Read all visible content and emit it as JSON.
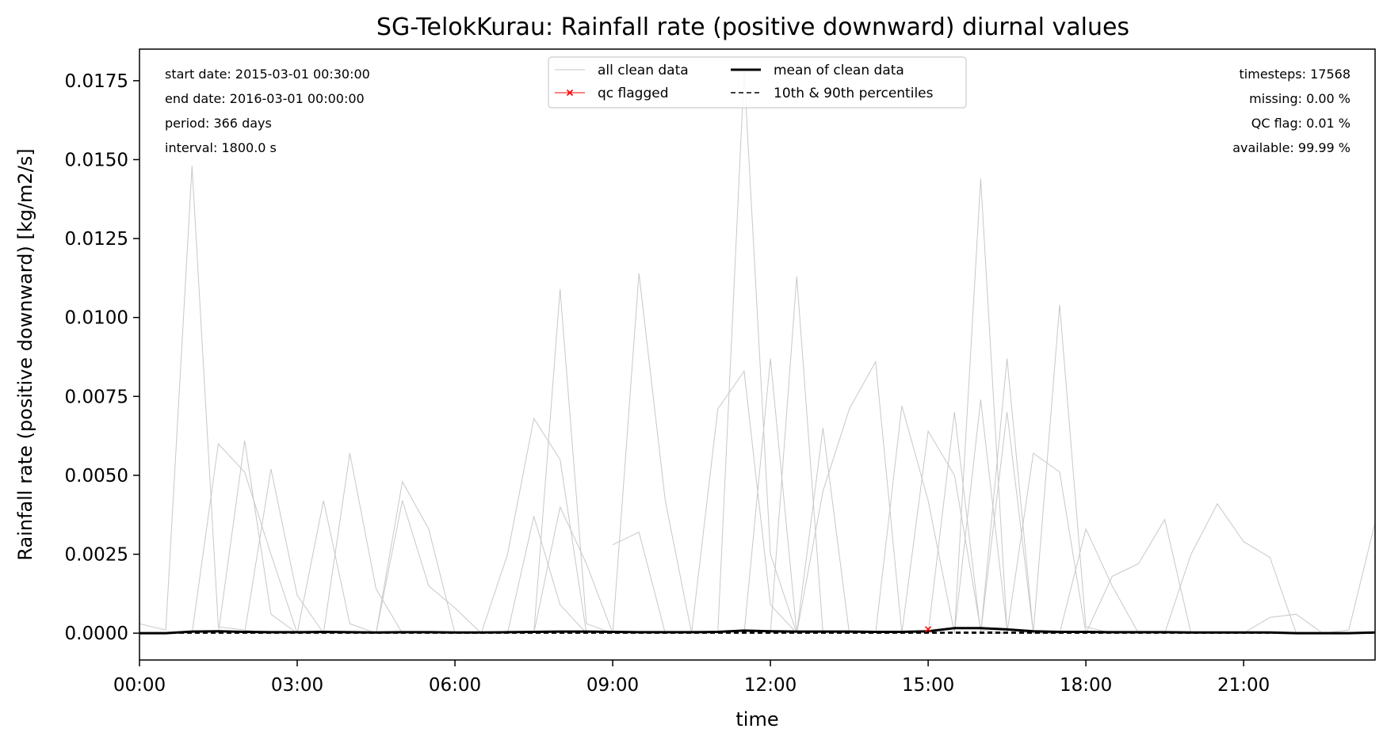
{
  "chart_data": {
    "type": "line",
    "title": "SG-TelokKurau: Rainfall rate (positive downward) diurnal values",
    "xlabel": "time",
    "ylabel": "Rainfall rate (positive downward) [kg/m2/s]",
    "xlim_hours": [
      0,
      23.5
    ],
    "ylim": [
      -0.00085,
      0.0185
    ],
    "x_ticks": [
      {
        "hour": 0,
        "label": "00:00"
      },
      {
        "hour": 3,
        "label": "03:00"
      },
      {
        "hour": 6,
        "label": "06:00"
      },
      {
        "hour": 9,
        "label": "09:00"
      },
      {
        "hour": 12,
        "label": "12:00"
      },
      {
        "hour": 15,
        "label": "15:00"
      },
      {
        "hour": 18,
        "label": "18:00"
      },
      {
        "hour": 21,
        "label": "21:00"
      }
    ],
    "y_ticks": [
      {
        "value": 0.0,
        "label": "0.0000"
      },
      {
        "value": 0.0025,
        "label": "0.0025"
      },
      {
        "value": 0.005,
        "label": "0.0050"
      },
      {
        "value": 0.0075,
        "label": "0.0075"
      },
      {
        "value": 0.01,
        "label": "0.0100"
      },
      {
        "value": 0.0125,
        "label": "0.0125"
      },
      {
        "value": 0.015,
        "label": "0.0150"
      },
      {
        "value": 0.0175,
        "label": "0.0175"
      }
    ],
    "grid": false,
    "legend_position": "top-center",
    "colors": {
      "clean": "#c8c8c8",
      "mean": "#000000",
      "percentiles": "#000000",
      "qc": "#ff0000"
    },
    "legend": [
      {
        "label": "all clean data",
        "style": "thin-gray"
      },
      {
        "label": "mean of clean data",
        "style": "thick-black"
      },
      {
        "label": "qc flagged",
        "style": "red-x"
      },
      {
        "label": "10th & 90th percentiles",
        "style": "dashed-black"
      }
    ],
    "stats_left": [
      "start date: 2015-03-01 00:30:00",
      "end date: 2016-03-01 00:00:00",
      "period: 366 days",
      "interval: 1800.0 s"
    ],
    "stats_right": [
      "timesteps: 17568",
      "missing: 0.00 %",
      "QC flag: 0.01 %",
      "available: 99.99 %"
    ],
    "mean_series": {
      "x": [
        0,
        0.5,
        1,
        1.5,
        2,
        2.5,
        3,
        3.5,
        4,
        4.5,
        5,
        5.5,
        6,
        6.5,
        7,
        7.5,
        8,
        8.5,
        9,
        9.5,
        10,
        10.5,
        11,
        11.5,
        12,
        12.5,
        13,
        13.5,
        14,
        14.5,
        15,
        15.5,
        16,
        16.5,
        17,
        17.5,
        18,
        18.5,
        19,
        19.5,
        20,
        20.5,
        21,
        21.5,
        22,
        22.5,
        23,
        23.5
      ],
      "y": [
        0.0,
        0.0,
        5e-05,
        6e-05,
        4e-05,
        3e-05,
        3e-05,
        4e-05,
        3e-05,
        2e-05,
        3e-05,
        3e-05,
        2e-05,
        2e-05,
        3e-05,
        4e-05,
        5e-05,
        5e-05,
        4e-05,
        3e-05,
        3e-05,
        3e-05,
        4e-05,
        8e-05,
        6e-05,
        5e-05,
        5e-05,
        5e-05,
        4e-05,
        4e-05,
        6e-05,
        0.00016,
        0.00016,
        0.00012,
        6e-05,
        4e-05,
        4e-05,
        3e-05,
        3e-05,
        3e-05,
        2e-05,
        2e-05,
        2e-05,
        2e-05,
        0.0,
        0.0,
        0.0,
        2e-05
      ]
    },
    "percentile_series": {
      "name": "10th & 90th percentiles",
      "p10": {
        "x": [
          0,
          23.5
        ],
        "y": [
          0.0,
          0.0
        ]
      },
      "p90": {
        "x": [
          0,
          0.5,
          1,
          1.5,
          2,
          2.5,
          3,
          3.5,
          4,
          4.5,
          5,
          5.5,
          6,
          6.5,
          7,
          7.5,
          8,
          8.5,
          9,
          9.5,
          10,
          10.5,
          11,
          11.5,
          12,
          12.5,
          13,
          13.5,
          14,
          14.5,
          15,
          15.5,
          16,
          16.5,
          17,
          17.5,
          18,
          18.5,
          19,
          19.5,
          20,
          20.5,
          21,
          21.5,
          22,
          22.5,
          23,
          23.5
        ],
        "y": [
          0.0,
          0.0,
          2e-05,
          3e-05,
          2e-05,
          2e-05,
          1e-05,
          2e-05,
          2e-05,
          1e-05,
          1e-05,
          1e-05,
          1e-05,
          1e-05,
          1e-05,
          2e-05,
          2e-05,
          2e-05,
          2e-05,
          1e-05,
          1e-05,
          1e-05,
          2e-05,
          2e-05,
          2e-05,
          2e-05,
          2e-05,
          2e-05,
          2e-05,
          2e-05,
          2e-05,
          3e-05,
          3e-05,
          3e-05,
          2e-05,
          2e-05,
          2e-05,
          1e-05,
          1e-05,
          1e-05,
          1e-05,
          1e-05,
          1e-05,
          1e-05,
          0.0,
          0.0,
          0.0,
          1e-05
        ]
      }
    },
    "qc_points": [
      {
        "x": 15.0,
        "y": 0.00012
      }
    ],
    "clean_days": [
      {
        "x": [
          0,
          0.5,
          1.0,
          1.5,
          2.0,
          2.5
        ],
        "y": [
          0.0003,
          0.0001,
          0.0148,
          0.0002,
          0.0001,
          0.0
        ]
      },
      {
        "x": [
          1.0,
          1.5,
          2.0,
          2.5,
          3.0
        ],
        "y": [
          0.0,
          0.006,
          0.0051,
          0.0025,
          0.0
        ]
      },
      {
        "x": [
          1.5,
          2.0,
          2.5,
          3.0
        ],
        "y": [
          0.0,
          0.0061,
          0.0006,
          0.0
        ]
      },
      {
        "x": [
          2.0,
          2.5,
          3.0,
          3.5
        ],
        "y": [
          0.0,
          0.0052,
          0.0012,
          0.0
        ]
      },
      {
        "x": [
          3.0,
          3.5,
          4.0,
          4.5
        ],
        "y": [
          0.0,
          0.0042,
          0.0003,
          0.0
        ]
      },
      {
        "x": [
          3.5,
          4.0,
          4.5,
          5.0
        ],
        "y": [
          0.0,
          0.0057,
          0.0014,
          0.0
        ]
      },
      {
        "x": [
          4.5,
          5.0,
          5.5,
          6.0
        ],
        "y": [
          0.0,
          0.0048,
          0.0033,
          0.0
        ]
      },
      {
        "x": [
          4.5,
          5.0,
          5.5,
          6.0,
          6.5
        ],
        "y": [
          0.0,
          0.0042,
          0.0015,
          0.0008,
          0.0
        ]
      },
      {
        "x": [
          6.5,
          7.0,
          7.5,
          8.0,
          8.5
        ],
        "y": [
          0.0,
          0.0025,
          0.0068,
          0.0055,
          0.0
        ]
      },
      {
        "x": [
          7.5,
          8.0,
          8.5,
          9.0
        ],
        "y": [
          0.0,
          0.0109,
          0.0003,
          0.0
        ]
      },
      {
        "x": [
          7.0,
          7.5,
          8.0,
          8.5
        ],
        "y": [
          0.0,
          0.0037,
          0.0009,
          0.0
        ]
      },
      {
        "x": [
          7.5,
          8.0,
          8.5,
          9.0
        ],
        "y": [
          0.0,
          0.004,
          0.0022,
          0.0
        ]
      },
      {
        "x": [
          9.0,
          9.5,
          10.0,
          10.5
        ],
        "y": [
          0.0,
          0.0114,
          0.0042,
          0.0
        ]
      },
      {
        "x": [
          9.0,
          9.5,
          10.0
        ],
        "y": [
          0.0028,
          0.0032,
          0.0
        ]
      },
      {
        "x": [
          10.5,
          11.0,
          11.5,
          12.0,
          12.5
        ],
        "y": [
          0.0,
          0.0071,
          0.0083,
          0.0009,
          0.0
        ]
      },
      {
        "x": [
          11.0,
          11.5,
          12.0,
          12.5
        ],
        "y": [
          0.0,
          0.0178,
          0.0025,
          0.0
        ]
      },
      {
        "x": [
          11.5,
          12.0,
          12.5
        ],
        "y": [
          0.0,
          0.0087,
          0.0
        ]
      },
      {
        "x": [
          12.0,
          12.5,
          13.0
        ],
        "y": [
          0.0,
          0.0113,
          0.0
        ]
      },
      {
        "x": [
          12.5,
          13.0,
          13.5
        ],
        "y": [
          0.0,
          0.0065,
          0.0
        ]
      },
      {
        "x": [
          12.5,
          13.0,
          13.5,
          14.0,
          14.5
        ],
        "y": [
          0.0,
          0.0045,
          0.0071,
          0.0086,
          0.0
        ]
      },
      {
        "x": [
          14.0,
          14.5,
          15.0,
          15.5
        ],
        "y": [
          0.0,
          0.0072,
          0.0042,
          0.0
        ]
      },
      {
        "x": [
          14.5,
          15.0,
          15.5,
          16.0,
          16.5
        ],
        "y": [
          0.0,
          0.0064,
          0.005,
          0.0001,
          0.0
        ]
      },
      {
        "x": [
          15.0,
          15.5,
          16.0,
          16.5
        ],
        "y": [
          0.0,
          0.007,
          0.0,
          0.0
        ]
      },
      {
        "x": [
          15.5,
          16.0,
          16.5,
          17.0
        ],
        "y": [
          0.0,
          0.0144,
          0.0001,
          0.0
        ]
      },
      {
        "x": [
          15.5,
          16.0,
          16.5,
          17.0
        ],
        "y": [
          0.0,
          0.0074,
          0.0001,
          0.0
        ]
      },
      {
        "x": [
          16.0,
          16.5,
          17.0
        ],
        "y": [
          0.0,
          0.0087,
          0.0
        ]
      },
      {
        "x": [
          16.0,
          16.5,
          17.0,
          17.5
        ],
        "y": [
          0.0,
          0.007,
          0.0,
          0.0
        ]
      },
      {
        "x": [
          16.5,
          17.0,
          17.5,
          18.0
        ],
        "y": [
          0.0,
          0.0057,
          0.0051,
          0.0
        ]
      },
      {
        "x": [
          17.0,
          17.5,
          18.0,
          18.5
        ],
        "y": [
          0.0,
          0.0104,
          0.0002,
          0.0
        ]
      },
      {
        "x": [
          17.5,
          18.0,
          18.5,
          19.0
        ],
        "y": [
          0.0,
          0.0033,
          0.0015,
          0.0
        ]
      },
      {
        "x": [
          18.0,
          18.5,
          19.0,
          19.5,
          20.0
        ],
        "y": [
          0.0,
          0.0018,
          0.0022,
          0.0036,
          0.0
        ]
      },
      {
        "x": [
          19.5,
          20.0,
          20.5,
          21.0,
          21.5,
          22.0
        ],
        "y": [
          0.0,
          0.0025,
          0.0041,
          0.0029,
          0.0024,
          0.0
        ]
      },
      {
        "x": [
          21.0,
          21.5,
          22.0,
          22.5
        ],
        "y": [
          0.0,
          0.0005,
          0.0006,
          0.0
        ]
      },
      {
        "x": [
          22.5,
          23.0,
          23.5
        ],
        "y": [
          0.0,
          0.0001,
          0.0035
        ]
      }
    ]
  }
}
